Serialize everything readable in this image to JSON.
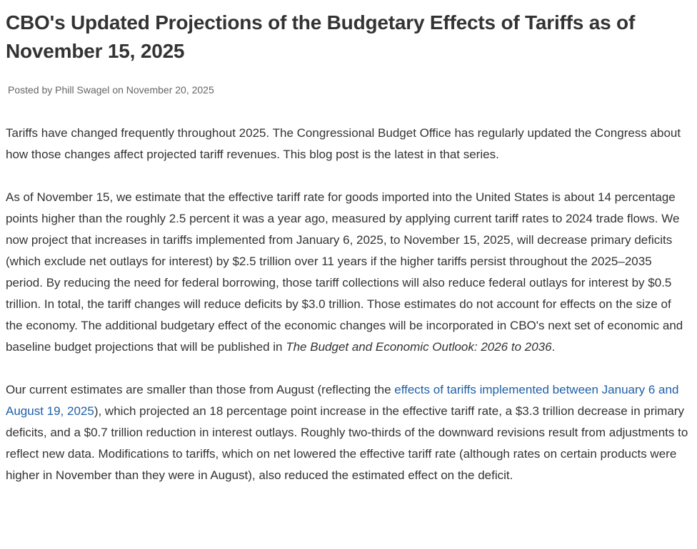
{
  "article": {
    "title": "CBO's Updated Projections of the Budgetary Effects of Tariffs as of November 15, 2025",
    "byline": {
      "posted_by": "Posted by",
      "author": "Phill Swagel",
      "on": "on",
      "date": "November 20, 2025"
    },
    "paragraphs": {
      "p1": "Tariffs have changed frequently throughout 2025. The Congressional Budget Office has regularly updated the Congress about how those changes affect projected tariff revenues. This blog post is the latest in that series.",
      "p2_text": "As of November 15, we estimate that the effective tariff rate for goods imported into the United States is about 14 percentage points higher than the roughly 2.5 percent it was a year ago, measured by applying current tariff rates to 2024 trade flows. We now project that increases in tariffs implemented from January 6, 2025, to November 15, 2025, will decrease primary deficits (which exclude net outlays for interest) by $2.5 trillion over 11 years if the higher tariffs persist throughout the 2025–2035 period. By reducing the need for federal borrowing, those tariff collections will also reduce federal outlays for interest by $0.5 trillion. In total, the tariff changes will reduce deficits by $3.0 trillion. Those estimates do not account for effects on the size of the economy. The additional budgetary effect of the economic changes will be incorporated in CBO's next set of economic and baseline budget projections that will be published in ",
      "p2_italic": "The Budget and Economic Outlook: 2026 to 2036",
      "p2_end": ".",
      "p3_before": "Our current estimates are smaller than those from August (reflecting the ",
      "p3_link": "effects of tariffs implemented between January 6 and August 19, 2025",
      "p3_after": "), which projected an 18 percentage point increase in the effective tariff rate, a $3.3 trillion decrease in primary deficits, and a $0.7 trillion reduction in interest outlays. Roughly two-thirds of the downward revisions result from adjustments to reflect new data. Modifications to tariffs, which on net lowered the effective tariff rate (although rates on certain products were higher in November than they were in August), also reduced the estimated effect on the deficit."
    }
  }
}
